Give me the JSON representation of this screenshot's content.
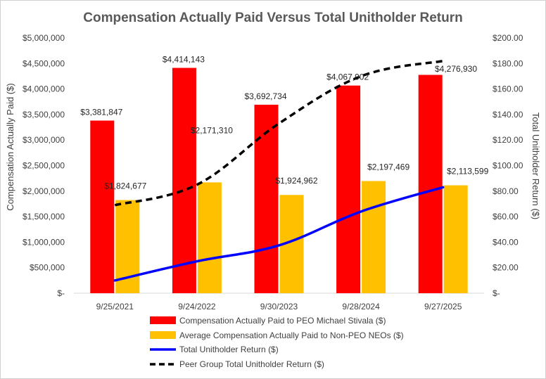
{
  "chart_data": {
    "type": "bar",
    "title": "Compensation Actually Paid Versus Total Unitholder Return",
    "categories": [
      "9/25/2021",
      "9/24/2022",
      "9/30/2023",
      "9/28/2024",
      "9/27/2025"
    ],
    "ylabel": "Compensation Actually Paid ($)",
    "y2label": "Total Unitholder Return ($)",
    "ylim": [
      0,
      5000000
    ],
    "y2lim": [
      0,
      200
    ],
    "yticks": [
      "$-",
      "$500,000",
      "$1,000,000",
      "$1,500,000",
      "$2,000,000",
      "$2,500,000",
      "$3,000,000",
      "$3,500,000",
      "$4,000,000",
      "$4,500,000",
      "$5,000,000"
    ],
    "y2ticks": [
      "$-",
      "$20.00",
      "$40.00",
      "$60.00",
      "$80.00",
      "$100.00",
      "$120.00",
      "$140.00",
      "$160.00",
      "$180.00",
      "$200.00"
    ],
    "legend_position": "bottom",
    "series": [
      {
        "name": "Compensation Actually Paid to PEO Michael Stivala ($)",
        "kind": "bar",
        "axis": "left",
        "color": "#ff0000",
        "values": [
          3381847,
          4414143,
          3692734,
          4067902,
          4276930
        ],
        "labels": [
          "$3,381,847",
          "$4,414,143",
          "$3,692,734",
          "$4,067,902",
          "$4,276,930"
        ]
      },
      {
        "name": "Average Compensation Actually Paid to Non-PEO NEOs ($)",
        "kind": "bar",
        "axis": "left",
        "color": "#ffc000",
        "values": [
          1824677,
          2171310,
          1924962,
          2197469,
          2113599
        ],
        "labels": [
          "$1,824,677",
          "$2,171,310",
          "$1,924,962",
          "$2,197,469",
          "$2,113,599"
        ]
      },
      {
        "name": "Total Unitholder Return ($)",
        "kind": "line",
        "axis": "right",
        "color": "#0000ff",
        "dash": "solid",
        "values": [
          10,
          25,
          37.5,
          64,
          83
        ]
      },
      {
        "name": "Peer Group Total Unitholder Return ($)",
        "kind": "line",
        "axis": "right",
        "color": "#000000",
        "dash": "dashed",
        "values": [
          69,
          85,
          133,
          170,
          182
        ]
      }
    ]
  }
}
